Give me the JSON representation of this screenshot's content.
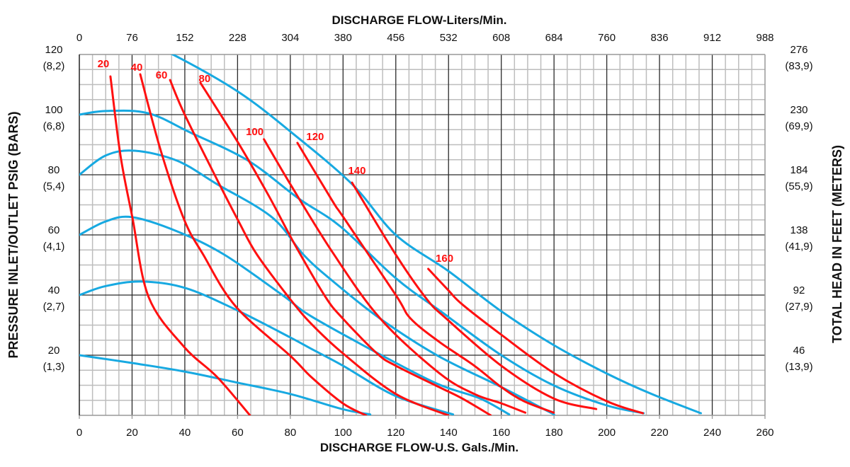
{
  "chart_data": {
    "type": "line",
    "top_title": "DISCHARGE FLOW-Liters/Min.",
    "xlabel": "DISCHARGE FLOW-U.S. Gals./Min.",
    "ylabel_left": "PRESSURE INLET/OUTLET PSIG (BARS)",
    "ylabel_right": "TOTAL HEAD IN FEET (METERS)",
    "xlim": [
      0,
      260
    ],
    "ylim": [
      0,
      120
    ],
    "grid": true,
    "grid_minor_step": {
      "x": 5,
      "y": 5
    },
    "x_ticks": [
      "0",
      "20",
      "40",
      "60",
      "80",
      "100",
      "120",
      "140",
      "160",
      "180",
      "200",
      "220",
      "240",
      "260"
    ],
    "top_ticks": [
      "0",
      "76",
      "152",
      "228",
      "304",
      "380",
      "456",
      "532",
      "608",
      "684",
      "760",
      "836",
      "912",
      "988"
    ],
    "left_ticks": [
      {
        "value": 120,
        "psi": "120",
        "bar": "(8,2)"
      },
      {
        "value": 100,
        "psi": "100",
        "bar": "(6,8)"
      },
      {
        "value": 80,
        "psi": "80",
        "bar": "(5,4)"
      },
      {
        "value": 60,
        "psi": "60",
        "bar": "(4,1)"
      },
      {
        "value": 40,
        "psi": "40",
        "bar": "(2,7)"
      },
      {
        "value": 20,
        "psi": "20",
        "bar": "(1,3)"
      }
    ],
    "right_ticks": [
      {
        "value": 120,
        "feet": "276",
        "meters": "(83,9)"
      },
      {
        "value": 100,
        "feet": "230",
        "meters": "(69,9)"
      },
      {
        "value": 80,
        "feet": "184",
        "meters": "(55,9)"
      },
      {
        "value": 60,
        "feet": "138",
        "meters": "(41,9)"
      },
      {
        "value": 40,
        "feet": "92",
        "meters": "(27,9)"
      },
      {
        "value": 20,
        "feet": "46",
        "meters": "(13,9)"
      }
    ],
    "colors": {
      "pressure_curves": "#17a9e1",
      "labeled_curves": "#ff1010",
      "grid_major": "#2b2b2b",
      "grid_minor": "#bdbdbd"
    },
    "pressure_curves": [
      {
        "points": [
          [
            20,
            126
          ],
          [
            37,
            119.3
          ],
          [
            60.4,
            107.5
          ],
          [
            80,
            94.4
          ],
          [
            103.4,
            76.9
          ],
          [
            120,
            60
          ],
          [
            139.9,
            48
          ],
          [
            160,
            34.6
          ],
          [
            180,
            23.3
          ],
          [
            200,
            13.9
          ],
          [
            217,
            7.1
          ],
          [
            235.7,
            0.7
          ]
        ]
      },
      {
        "points": [
          [
            0,
            100
          ],
          [
            10,
            101.2
          ],
          [
            26,
            100.5
          ],
          [
            42,
            94.1
          ],
          [
            64,
            84.7
          ],
          [
            83,
            72.2
          ],
          [
            99,
            62.8
          ],
          [
            120,
            45.6
          ],
          [
            137,
            34.6
          ],
          [
            160,
            20
          ],
          [
            180,
            9.9
          ],
          [
            200,
            3.3
          ],
          [
            214,
            0.7
          ]
        ]
      },
      {
        "points": [
          [
            0,
            80
          ],
          [
            10,
            86.4
          ],
          [
            21,
            88
          ],
          [
            37,
            84.7
          ],
          [
            52,
            77
          ],
          [
            73,
            65.9
          ],
          [
            85,
            53.4
          ],
          [
            96,
            44.7
          ],
          [
            114,
            32.2
          ],
          [
            136,
            19.8
          ],
          [
            160,
            9.4
          ],
          [
            180,
            0.3
          ]
        ]
      },
      {
        "points": [
          [
            0,
            60
          ],
          [
            10,
            64.5
          ],
          [
            20,
            65.9
          ],
          [
            37,
            61.2
          ],
          [
            55,
            53.4
          ],
          [
            77,
            40
          ],
          [
            88,
            32.9
          ],
          [
            115,
            19.8
          ],
          [
            136,
            10.4
          ],
          [
            152,
            5.6
          ],
          [
            163,
            0.3
          ]
        ]
      },
      {
        "points": [
          [
            0,
            40
          ],
          [
            10,
            43
          ],
          [
            23.6,
            44.5
          ],
          [
            40,
            42.4
          ],
          [
            59,
            35.3
          ],
          [
            80,
            25.9
          ],
          [
            88,
            22.1
          ],
          [
            100,
            16.5
          ],
          [
            120,
            6.4
          ],
          [
            141.7,
            0.3
          ]
        ]
      },
      {
        "points": [
          [
            0,
            20
          ],
          [
            20,
            17.4
          ],
          [
            39.7,
            14.6
          ],
          [
            59.3,
            11
          ],
          [
            80,
            7.1
          ],
          [
            99.6,
            2.1
          ],
          [
            110.3,
            0.3
          ]
        ]
      }
    ],
    "labeled_curves": [
      {
        "name": "20",
        "points": [
          [
            11.8,
            112.7
          ],
          [
            15.6,
            86.4
          ],
          [
            20.1,
            65.9
          ],
          [
            26.3,
            39.3
          ],
          [
            39.7,
            22.8
          ],
          [
            52.3,
            12.7
          ],
          [
            64.7,
            0
          ]
        ]
      },
      {
        "name": "40",
        "points": [
          [
            23.1,
            113.4
          ],
          [
            30.9,
            88
          ],
          [
            39.7,
            65.2
          ],
          [
            47,
            53.4
          ],
          [
            59.3,
            36.2
          ],
          [
            80,
            19.8
          ],
          [
            88,
            12.7
          ],
          [
            99.9,
            4
          ],
          [
            108.7,
            0
          ]
        ]
      },
      {
        "name": "60",
        "points": [
          [
            34.4,
            111.5
          ],
          [
            39.7,
            100.5
          ],
          [
            51.3,
            80
          ],
          [
            60.4,
            64.5
          ],
          [
            67.4,
            53.4
          ],
          [
            80,
            38.6
          ],
          [
            88,
            30.4
          ],
          [
            100.1,
            20.5
          ],
          [
            120,
            7.1
          ],
          [
            139.9,
            0
          ]
        ]
      },
      {
        "name": "80",
        "points": [
          [
            45.9,
            110.6
          ],
          [
            60.4,
            90.4
          ],
          [
            71.9,
            72.9
          ],
          [
            81.9,
            56.5
          ],
          [
            93.4,
            39.3
          ],
          [
            99.9,
            32.2
          ],
          [
            113,
            20.5
          ],
          [
            120,
            16.5
          ],
          [
            136.4,
            9.4
          ],
          [
            145.2,
            5.6
          ],
          [
            156,
            0
          ]
        ]
      },
      {
        "name": "100",
        "points": [
          [
            70,
            91.8
          ],
          [
            80,
            76.9
          ],
          [
            96.1,
            54.1
          ],
          [
            114.1,
            32.2
          ],
          [
            136.4,
            14.1
          ],
          [
            149.8,
            7.1
          ],
          [
            160,
            4
          ],
          [
            169.1,
            0.9
          ]
        ]
      },
      {
        "name": "120",
        "points": [
          [
            82.7,
            90.6
          ],
          [
            96.1,
            71.1
          ],
          [
            100.1,
            65.9
          ],
          [
            120,
            40
          ],
          [
            125.6,
            32.2
          ],
          [
            136.4,
            24.5
          ],
          [
            149.8,
            16.5
          ],
          [
            160,
            9.4
          ],
          [
            168.6,
            4.7
          ],
          [
            179.9,
            0.9
          ]
        ]
      },
      {
        "name": "140",
        "points": [
          [
            103.4,
            77.4
          ],
          [
            120,
            53.4
          ],
          [
            131.8,
            38.6
          ],
          [
            139.1,
            32.2
          ],
          [
            160,
            16.5
          ],
          [
            179.9,
            5.6
          ],
          [
            196,
            2.1
          ]
        ]
      },
      {
        "name": "160",
        "points": [
          [
            132.3,
            48.7
          ],
          [
            139.9,
            41.6
          ],
          [
            145.2,
            36.9
          ],
          [
            160,
            26.8
          ],
          [
            179.9,
            14.1
          ],
          [
            200,
            4.7
          ],
          [
            213.7,
            0.7
          ]
        ]
      }
    ]
  }
}
